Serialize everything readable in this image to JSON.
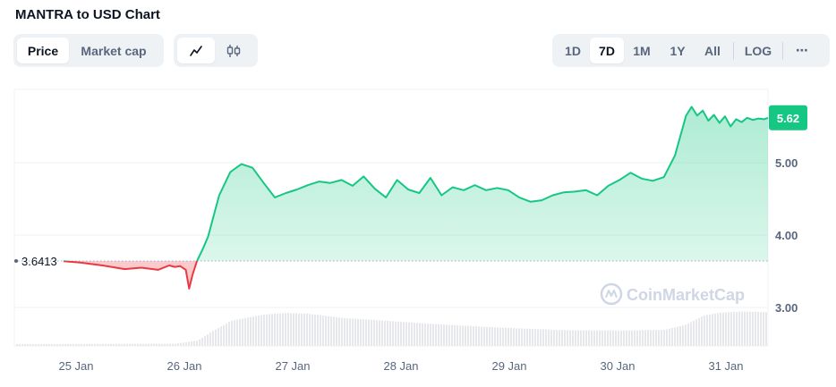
{
  "title": "MANTRA to USD Chart",
  "tabs_left": [
    {
      "label": "Price",
      "active": true
    },
    {
      "label": "Market cap",
      "active": false
    }
  ],
  "chart_type_icons": [
    {
      "icon": "line-chart-icon",
      "active": true
    },
    {
      "icon": "candlestick-icon",
      "active": false
    }
  ],
  "range_buttons": [
    {
      "label": "1D",
      "active": false
    },
    {
      "label": "7D",
      "active": true
    },
    {
      "label": "1M",
      "active": false
    },
    {
      "label": "1Y",
      "active": false
    },
    {
      "label": "All",
      "active": false
    }
  ],
  "log_label": "LOG",
  "more_label": "⋯",
  "watermark": "CoinMarketCap",
  "colors": {
    "up": "#16c784",
    "down": "#ea3943",
    "up_fill": "#16c784",
    "down_fill": "#ea3943",
    "volume": "#e6e8ec",
    "grid": "#eff2f5",
    "axis_text": "#58667e"
  },
  "chart_data": {
    "type": "area",
    "reference_price": "3.6413",
    "current_price": "5.62",
    "y_ticks": [
      "5.00",
      "4.00",
      "3.00"
    ],
    "y_tick_values": [
      5.0,
      4.0,
      3.0
    ],
    "x_ticks": [
      "25 Jan",
      "26 Jan",
      "27 Jan",
      "28 Jan",
      "29 Jan",
      "30 Jan",
      "31 Jan"
    ],
    "ylim": [
      2.5,
      6.0
    ],
    "price_series": {
      "t": [
        0,
        0.15,
        0.35,
        0.55,
        0.7,
        0.85,
        0.95,
        1.0,
        1.05,
        1.1,
        1.13,
        1.16,
        1.2,
        1.25,
        1.3,
        1.4,
        1.5,
        1.6,
        1.7,
        1.8,
        1.9,
        2.0,
        2.1,
        2.2,
        2.3,
        2.4,
        2.5,
        2.6,
        2.7,
        2.8,
        2.9,
        3.0,
        3.1,
        3.2,
        3.3,
        3.4,
        3.5,
        3.6,
        3.7,
        3.8,
        3.9,
        4.0,
        4.1,
        4.2,
        4.3,
        4.4,
        4.5,
        4.6,
        4.7,
        4.8,
        4.9,
        5.0,
        5.1,
        5.2,
        5.3,
        5.4,
        5.5,
        5.6,
        5.65,
        5.7,
        5.75,
        5.8,
        5.85,
        5.9,
        5.95,
        6.0,
        6.05,
        6.1,
        6.15,
        6.2,
        6.25,
        6.3,
        6.35
      ],
      "v": [
        3.64,
        3.62,
        3.58,
        3.53,
        3.55,
        3.52,
        3.58,
        3.56,
        3.57,
        3.52,
        3.26,
        3.45,
        3.64,
        3.8,
        3.98,
        4.55,
        4.87,
        4.98,
        4.93,
        4.72,
        4.52,
        4.58,
        4.63,
        4.69,
        4.74,
        4.72,
        4.76,
        4.68,
        4.81,
        4.64,
        4.52,
        4.76,
        4.63,
        4.58,
        4.79,
        4.55,
        4.66,
        4.62,
        4.69,
        4.62,
        4.65,
        4.62,
        4.52,
        4.46,
        4.48,
        4.55,
        4.59,
        4.6,
        4.62,
        4.55,
        4.68,
        4.76,
        4.86,
        4.78,
        4.75,
        4.8,
        5.1,
        5.65,
        5.77,
        5.65,
        5.72,
        5.58,
        5.66,
        5.55,
        5.64,
        5.5,
        5.6,
        5.56,
        5.62,
        5.59,
        5.61,
        5.6,
        5.62
      ]
    },
    "volume_series": {
      "t": [
        0,
        0.5,
        1.0,
        1.2,
        1.3,
        1.5,
        1.8,
        2.0,
        2.2,
        2.5,
        3.0,
        3.5,
        4.0,
        4.5,
        5.0,
        5.4,
        5.6,
        5.75,
        5.9,
        6.1,
        6.35
      ],
      "v": [
        0.5,
        0.55,
        0.6,
        1.5,
        3.5,
        7.0,
        8.8,
        9.2,
        9.0,
        7.8,
        6.8,
        5.8,
        5.0,
        4.4,
        4.3,
        4.5,
        6.0,
        8.5,
        9.3,
        9.6,
        9.4
      ]
    }
  }
}
